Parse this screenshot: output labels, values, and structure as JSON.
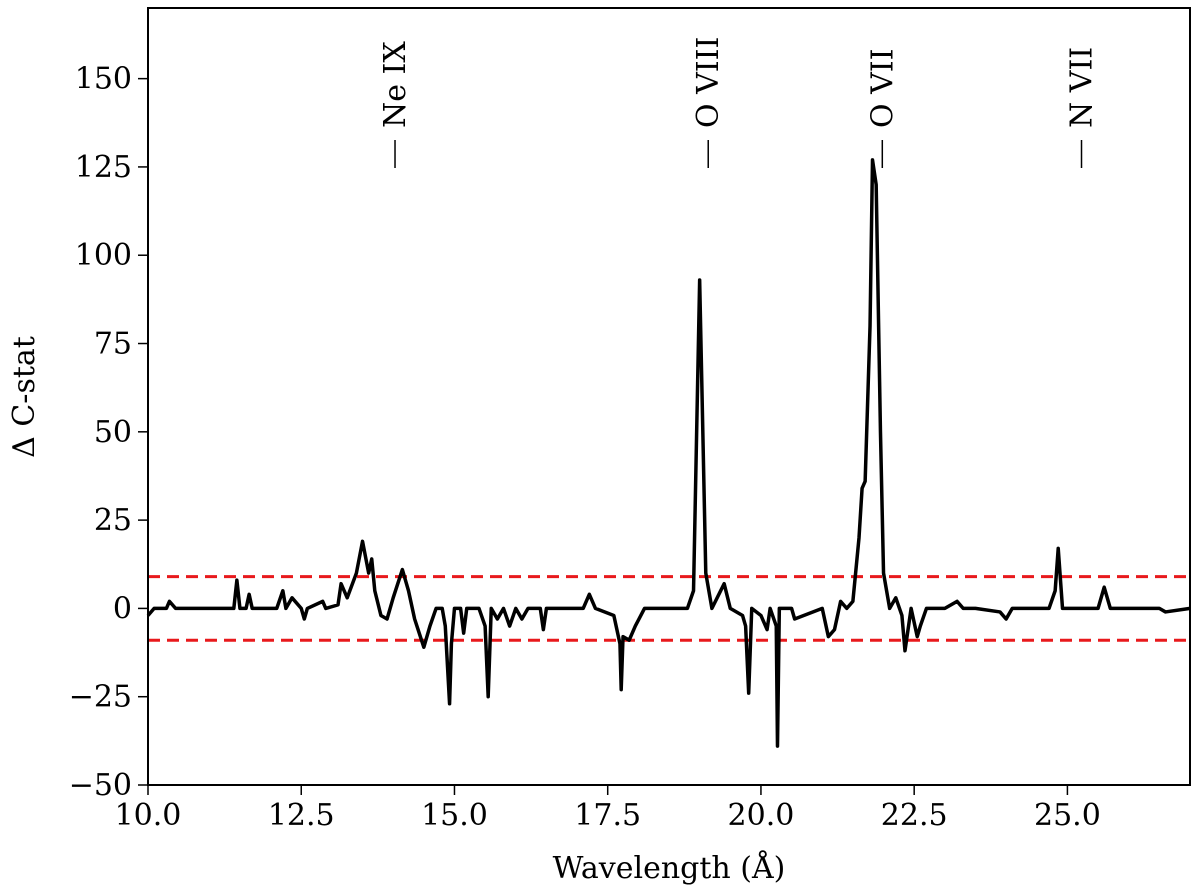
{
  "chart_data": {
    "type": "line",
    "xlabel": "Wavelength (Å)",
    "ylabel": "Δ C-stat",
    "xlim": [
      10,
      27
    ],
    "ylim": [
      -50,
      170
    ],
    "xticks": [
      {
        "value": 10,
        "label": "10.0"
      },
      {
        "value": 12.5,
        "label": "12.5"
      },
      {
        "value": 15,
        "label": "15.0"
      },
      {
        "value": 17.5,
        "label": "17.5"
      },
      {
        "value": 20,
        "label": "20.0"
      },
      {
        "value": 22.5,
        "label": "22.5"
      },
      {
        "value": 25,
        "label": "25.0"
      }
    ],
    "yticks": [
      {
        "value": -50,
        "label": "−50"
      },
      {
        "value": -25,
        "label": "−25"
      },
      0,
      25,
      50,
      75,
      100,
      125,
      150
    ],
    "hlines": [
      {
        "value": 9,
        "color": "#e8191c"
      },
      {
        "value": -9,
        "color": "#e8191c"
      }
    ],
    "annotations": [
      {
        "text": "Ne IX",
        "x": 14.03
      },
      {
        "text": "O VIII",
        "x": 19.14
      },
      {
        "text": "O VII",
        "x": 21.98
      },
      {
        "text": "N VII",
        "x": 25.23
      }
    ],
    "series": [
      {
        "color": "#000000",
        "x": [
          10.0,
          10.1,
          10.3,
          10.35,
          10.45,
          11.4,
          11.45,
          11.5,
          11.6,
          11.65,
          11.7,
          12.1,
          12.2,
          12.25,
          12.35,
          12.5,
          12.55,
          12.6,
          12.85,
          12.9,
          13.1,
          13.15,
          13.25,
          13.4,
          13.5,
          13.6,
          13.65,
          13.7,
          13.8,
          13.9,
          14.0,
          14.15,
          14.25,
          14.35,
          14.5,
          14.6,
          14.7,
          14.8,
          14.85,
          14.92,
          14.95,
          15.0,
          15.1,
          15.15,
          15.2,
          15.4,
          15.5,
          15.55,
          15.6,
          15.7,
          15.8,
          15.9,
          16.0,
          16.1,
          16.2,
          16.4,
          16.45,
          16.5,
          17.1,
          17.2,
          17.3,
          17.6,
          17.7,
          17.72,
          17.75,
          17.85,
          17.95,
          18.1,
          18.8,
          18.9,
          19.0,
          19.1,
          19.2,
          19.4,
          19.5,
          19.7,
          19.75,
          19.8,
          19.85,
          20.0,
          20.1,
          20.15,
          20.25,
          20.27,
          20.3,
          20.5,
          20.55,
          21.0,
          21.1,
          21.2,
          21.3,
          21.4,
          21.5,
          21.6,
          21.65,
          21.7,
          21.78,
          21.82,
          21.88,
          21.95,
          22.0,
          22.1,
          22.2,
          22.3,
          22.35,
          22.45,
          22.55,
          22.6,
          22.7,
          23.0,
          23.2,
          23.3,
          23.5,
          23.9,
          24.0,
          24.1,
          24.7,
          24.8,
          24.85,
          24.92,
          25.5,
          25.6,
          25.7,
          26.5,
          26.6,
          27.0
        ],
        "values": [
          -2,
          0,
          0,
          2,
          0,
          0,
          8,
          0,
          0,
          4,
          0,
          0,
          5,
          0,
          3,
          0,
          -3,
          0,
          2,
          0,
          1,
          7,
          3,
          10,
          19,
          10,
          14,
          5,
          -2,
          -3,
          3,
          11,
          5,
          -3,
          -11,
          -5,
          0,
          0,
          -5,
          -27,
          -10,
          0,
          0,
          -7,
          0,
          0,
          -5,
          -25,
          0,
          -3,
          0,
          -5,
          0,
          -3,
          0,
          0,
          -6,
          0,
          0,
          4,
          0,
          -2,
          -10,
          -23,
          -8,
          -9,
          -5,
          0,
          0,
          5,
          93,
          10,
          0,
          7,
          0,
          -2,
          -5,
          -24,
          0,
          -2,
          -6,
          0,
          -5,
          -39,
          0,
          0,
          -3,
          0,
          -8,
          -6,
          2,
          0,
          2,
          20,
          34,
          36,
          80,
          127,
          120,
          50,
          10,
          0,
          3,
          -2,
          -12,
          0,
          -8,
          -5,
          0,
          0,
          2,
          0,
          0,
          -1,
          -3,
          0,
          0,
          5,
          17,
          0,
          0,
          6,
          0,
          0,
          -1,
          0
        ]
      }
    ]
  }
}
